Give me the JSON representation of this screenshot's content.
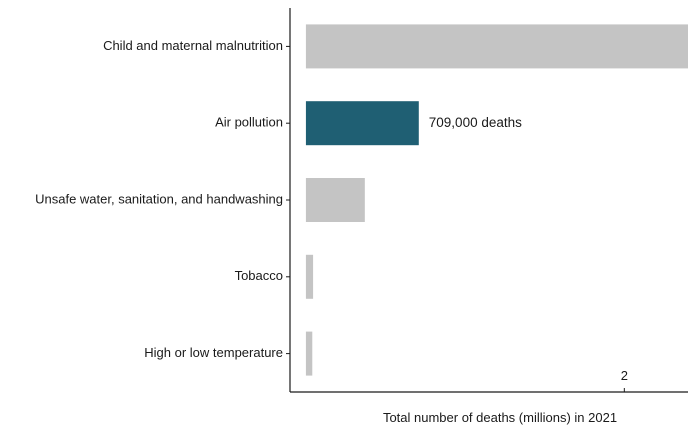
{
  "chart_data": {
    "type": "bar",
    "orientation": "horizontal",
    "categories": [
      "Child and maternal malnutrition",
      "Air pollution",
      "Unsafe water, sanitation, and handwashing",
      "Tobacco",
      "High or low temperature"
    ],
    "values": [
      2.4,
      0.709,
      0.37,
      0.045,
      0.04
    ],
    "xlabel": "Total number of deaths (millions) in 2021",
    "ylabel": "",
    "xlim": [
      -0.1,
      2.4
    ],
    "xticks": [
      2
    ],
    "xtick_labels": [
      "2"
    ],
    "highlight_index": 1,
    "highlight_label": "709,000 deaths",
    "colors": {
      "default": "#c4c4c4",
      "highlight": "#1f5f73",
      "axis": "#1a1a1a"
    },
    "grid": false,
    "legend": "none"
  }
}
